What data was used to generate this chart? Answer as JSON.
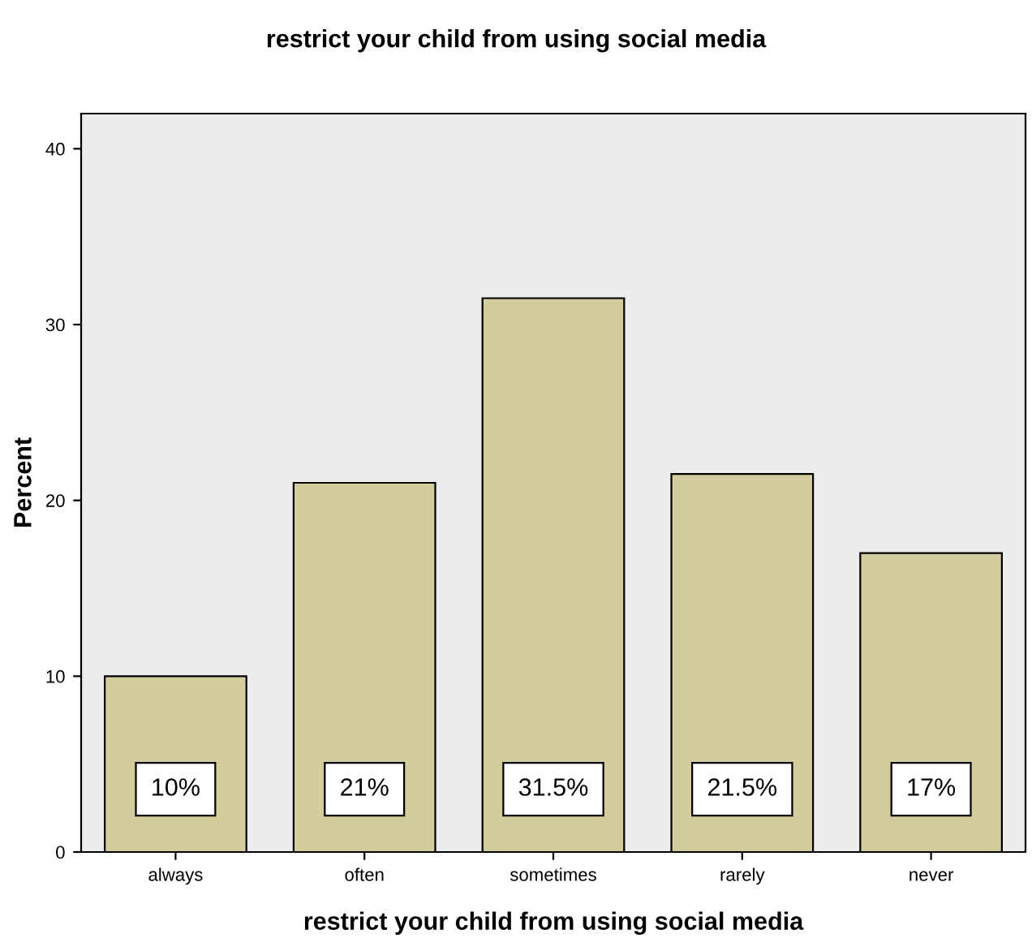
{
  "chart_data": {
    "type": "bar",
    "title": "restrict your child from using social media",
    "xlabel": "restrict your child from using social media",
    "ylabel": "Percent",
    "categories": [
      "always",
      "often",
      "sometimes",
      "rarely",
      "never"
    ],
    "values": [
      10,
      21,
      31.5,
      21.5,
      17
    ],
    "value_labels": [
      "10%",
      "21%",
      "31.5%",
      "21.5%",
      "17%"
    ],
    "color": "#d3cd9e",
    "ylim": [
      0,
      42
    ],
    "yticks": [
      0,
      10,
      20,
      30,
      40
    ],
    "grid": false,
    "legend": false
  }
}
